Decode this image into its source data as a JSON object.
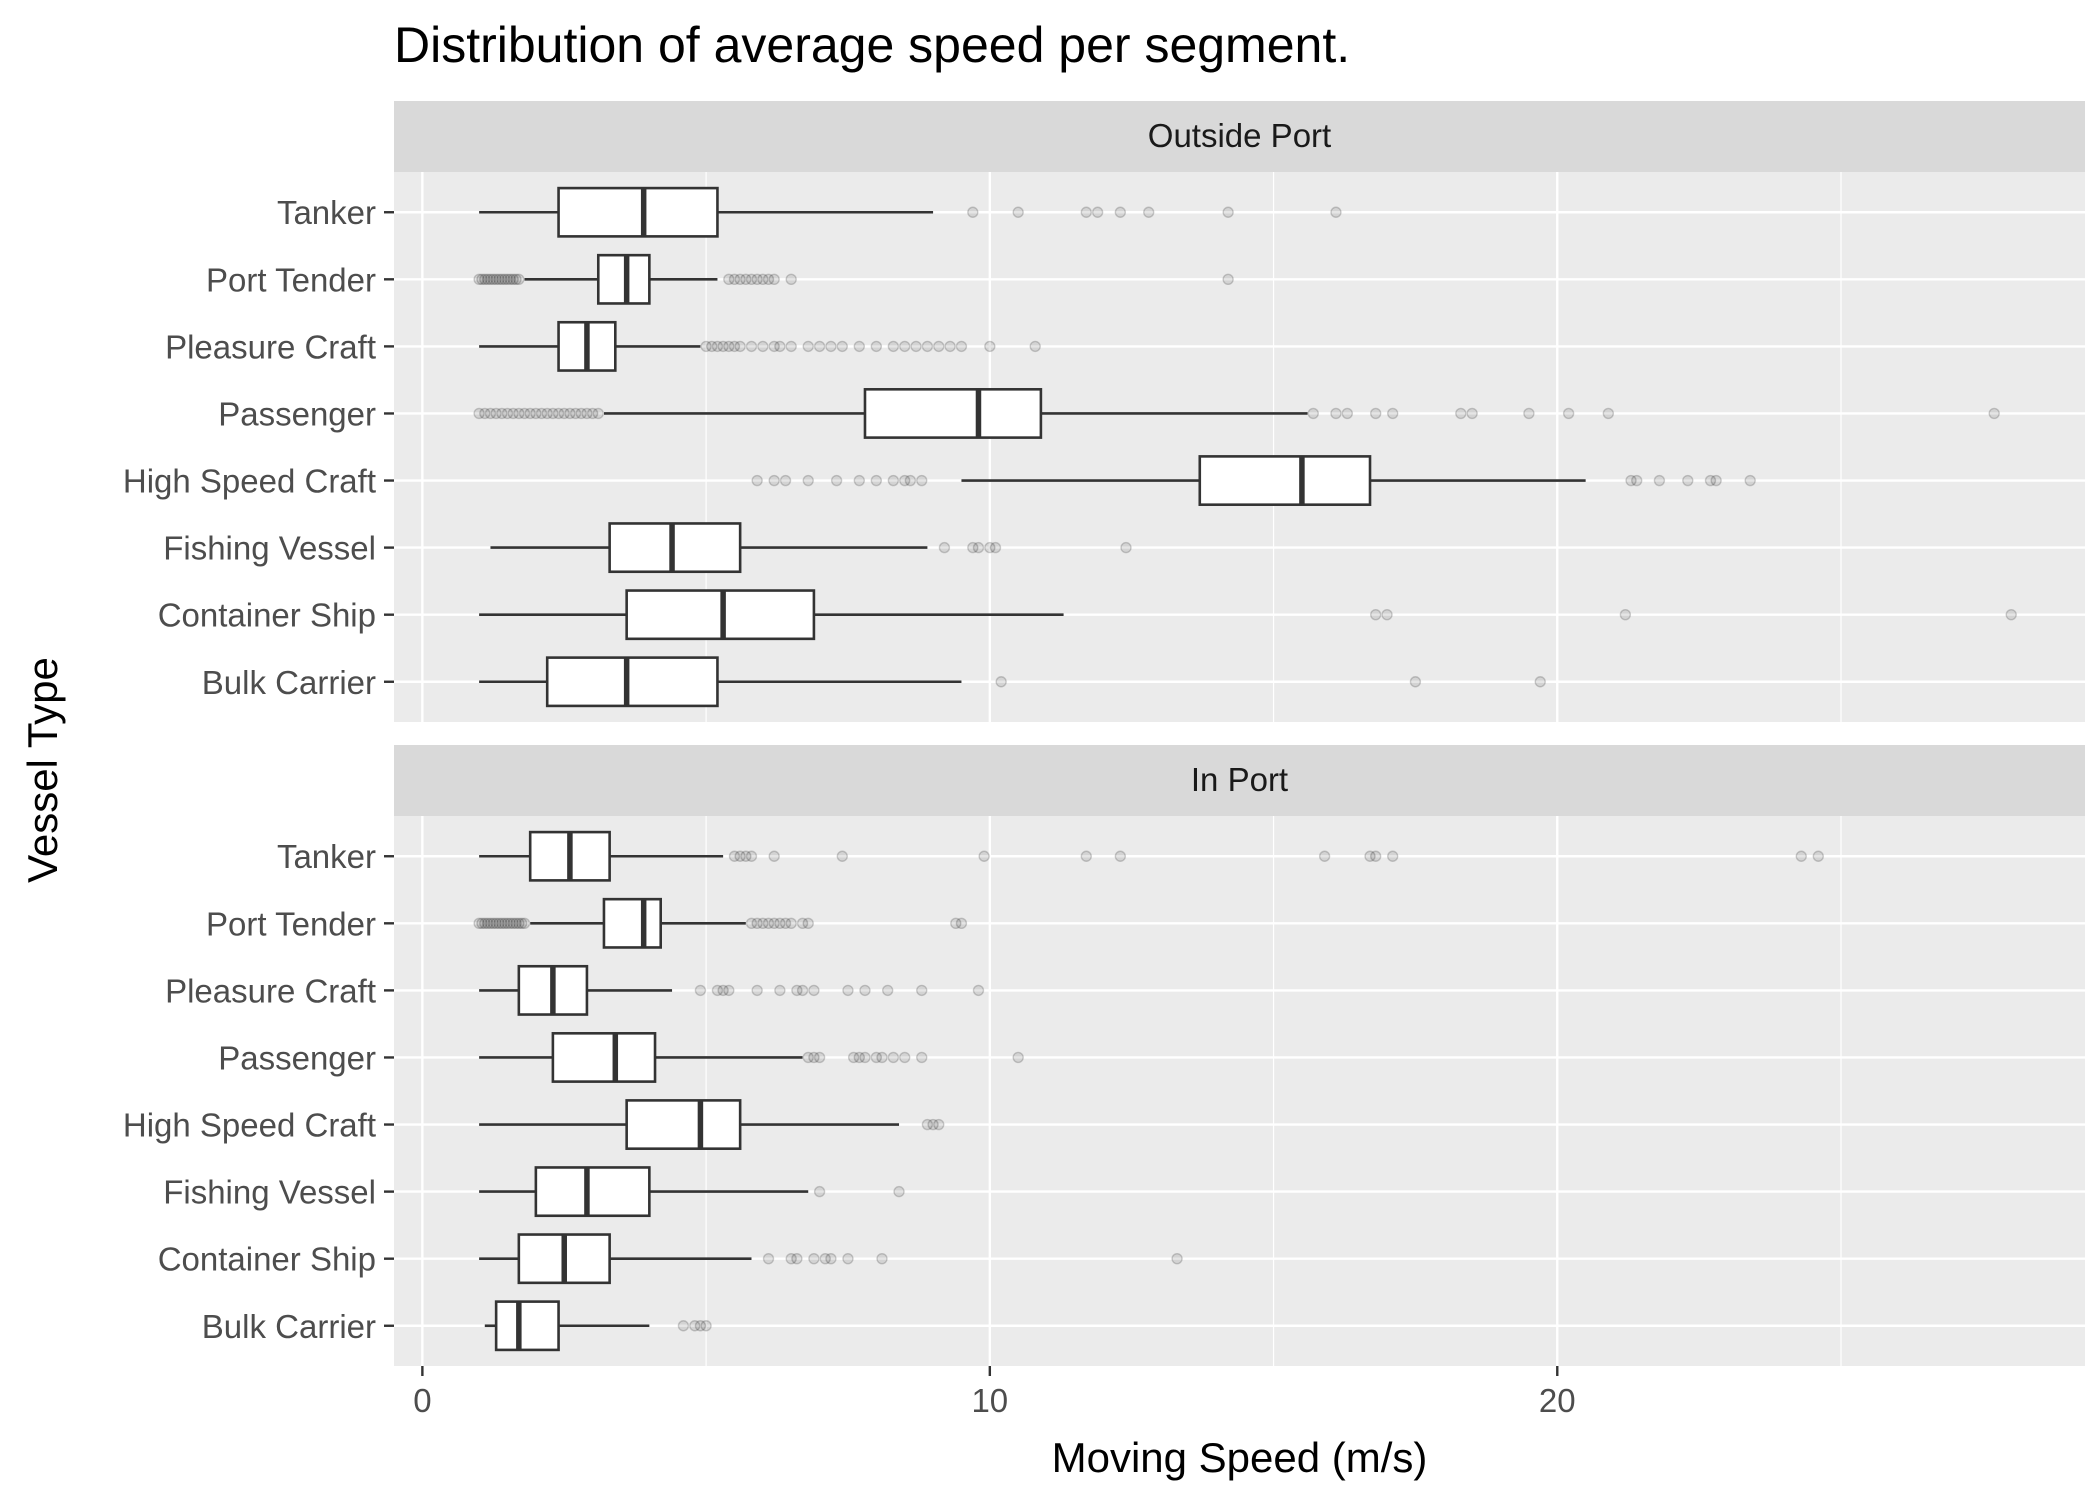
{
  "chart_data": {
    "type": "boxplot",
    "title": "Distribution of average speed per segment.",
    "xlabel": "Moving Speed (m/s)",
    "ylabel": "Vessel Type",
    "xlim": [
      -0.5,
      29.3
    ],
    "x_ticks": [
      0,
      10,
      20
    ],
    "x_tick_labels": [
      "0",
      "10",
      "20"
    ],
    "categories": [
      "Tanker",
      "Port Tender",
      "Pleasure Craft",
      "Passenger",
      "High Speed Craft",
      "Fishing Vessel",
      "Container Ship",
      "Bulk Carrier"
    ],
    "colors": {
      "panel_background": "#ebebeb",
      "grid": "#ffffff",
      "strip_background": "#d9d9d9",
      "box_fill": "#ffffff",
      "box_line": "#333333",
      "outlier": "#000000"
    },
    "panels": [
      {
        "label": "Outside Port",
        "boxes": [
          {
            "category": "Tanker",
            "min": 1.0,
            "q1": 2.4,
            "median": 3.9,
            "q3": 5.2,
            "max": 9.0,
            "outliers": [
              9.7,
              10.5,
              11.7,
              11.9,
              12.3,
              12.8,
              14.2,
              16.1
            ]
          },
          {
            "category": "Port Tender",
            "min": 1.8,
            "q1": 3.1,
            "median": 3.6,
            "q3": 4.0,
            "max": 5.2,
            "outliers": [
              1.0,
              1.05,
              1.1,
              1.15,
              1.2,
              1.25,
              1.3,
              1.35,
              1.4,
              1.45,
              1.5,
              1.55,
              1.6,
              1.65,
              1.7,
              5.4,
              5.5,
              5.6,
              5.7,
              5.8,
              5.9,
              6.0,
              6.1,
              6.2,
              6.5,
              14.2
            ]
          },
          {
            "category": "Pleasure Craft",
            "min": 1.0,
            "q1": 2.4,
            "median": 2.9,
            "q3": 3.4,
            "max": 4.9,
            "outliers": [
              5.0,
              5.1,
              5.2,
              5.3,
              5.4,
              5.5,
              5.6,
              5.8,
              6.0,
              6.2,
              6.3,
              6.5,
              6.8,
              7.0,
              7.2,
              7.4,
              7.7,
              8.0,
              8.3,
              8.5,
              8.7,
              8.9,
              9.1,
              9.3,
              9.5,
              10.0,
              10.8
            ]
          },
          {
            "category": "Passenger",
            "min": 3.2,
            "q1": 7.8,
            "median": 9.8,
            "q3": 10.9,
            "max": 15.6,
            "outliers": [
              1.0,
              1.1,
              1.2,
              1.3,
              1.4,
              1.5,
              1.6,
              1.7,
              1.8,
              1.9,
              2.0,
              2.1,
              2.2,
              2.3,
              2.4,
              2.5,
              2.6,
              2.7,
              2.8,
              2.9,
              3.0,
              3.1,
              15.7,
              16.1,
              16.3,
              16.8,
              17.1,
              18.3,
              18.5,
              19.5,
              20.2,
              20.9,
              27.7
            ]
          },
          {
            "category": "High Speed Craft",
            "min": 9.5,
            "q1": 13.7,
            "median": 15.5,
            "q3": 16.7,
            "max": 20.5,
            "outliers": [
              5.9,
              6.2,
              6.4,
              6.8,
              7.3,
              7.7,
              8.0,
              8.3,
              8.5,
              8.6,
              8.8,
              21.3,
              21.4,
              21.8,
              22.3,
              22.7,
              22.8,
              23.4
            ]
          },
          {
            "category": "Fishing Vessel",
            "min": 1.2,
            "q1": 3.3,
            "median": 4.4,
            "q3": 5.6,
            "max": 8.9,
            "outliers": [
              9.2,
              9.7,
              9.8,
              10.0,
              10.1,
              12.4
            ]
          },
          {
            "category": "Container Ship",
            "min": 1.0,
            "q1": 3.6,
            "median": 5.3,
            "q3": 6.9,
            "max": 11.3,
            "outliers": [
              16.8,
              17.0,
              21.2,
              28.0
            ]
          },
          {
            "category": "Bulk Carrier",
            "min": 1.0,
            "q1": 2.2,
            "median": 3.6,
            "q3": 5.2,
            "max": 9.5,
            "outliers": [
              10.2,
              17.5,
              19.7
            ]
          }
        ]
      },
      {
        "label": "In Port",
        "boxes": [
          {
            "category": "Tanker",
            "min": 1.0,
            "q1": 1.9,
            "median": 2.6,
            "q3": 3.3,
            "max": 5.3,
            "outliers": [
              5.5,
              5.6,
              5.7,
              5.8,
              6.2,
              7.4,
              9.9,
              11.7,
              12.3,
              15.9,
              16.7,
              16.8,
              17.1,
              24.3,
              24.6
            ]
          },
          {
            "category": "Port Tender",
            "min": 1.9,
            "q1": 3.2,
            "median": 3.9,
            "q3": 4.2,
            "max": 5.7,
            "outliers": [
              1.0,
              1.05,
              1.1,
              1.15,
              1.2,
              1.25,
              1.3,
              1.35,
              1.4,
              1.45,
              1.5,
              1.55,
              1.6,
              1.65,
              1.7,
              1.75,
              1.8,
              5.8,
              5.9,
              6.0,
              6.1,
              6.2,
              6.3,
              6.4,
              6.5,
              6.7,
              6.8,
              9.4,
              9.5
            ]
          },
          {
            "category": "Pleasure Craft",
            "min": 1.0,
            "q1": 1.7,
            "median": 2.3,
            "q3": 2.9,
            "max": 4.4,
            "outliers": [
              4.9,
              5.2,
              5.3,
              5.4,
              5.9,
              6.3,
              6.6,
              6.7,
              6.9,
              7.5,
              7.8,
              8.2,
              8.8,
              9.8
            ]
          },
          {
            "category": "Passenger",
            "min": 1.0,
            "q1": 2.3,
            "median": 3.4,
            "q3": 4.1,
            "max": 6.7,
            "outliers": [
              6.8,
              6.9,
              7.0,
              7.6,
              7.7,
              7.8,
              8.0,
              8.1,
              8.3,
              8.5,
              8.8,
              10.5
            ]
          },
          {
            "category": "High Speed Craft",
            "min": 1.0,
            "q1": 3.6,
            "median": 4.9,
            "q3": 5.6,
            "max": 8.4,
            "outliers": [
              8.9,
              9.0,
              9.1
            ]
          },
          {
            "category": "Fishing Vessel",
            "min": 1.0,
            "q1": 2.0,
            "median": 2.9,
            "q3": 4.0,
            "max": 6.8,
            "outliers": [
              7.0,
              8.4
            ]
          },
          {
            "category": "Container Ship",
            "min": 1.0,
            "q1": 1.7,
            "median": 2.5,
            "q3": 3.3,
            "max": 5.8,
            "outliers": [
              6.1,
              6.5,
              6.6,
              6.9,
              7.1,
              7.2,
              7.5,
              8.1,
              13.3
            ]
          },
          {
            "category": "Bulk Carrier",
            "min": 1.1,
            "q1": 1.3,
            "median": 1.7,
            "q3": 2.4,
            "max": 4.0,
            "outliers": [
              4.6,
              4.8,
              4.9,
              5.0
            ]
          }
        ]
      }
    ]
  }
}
